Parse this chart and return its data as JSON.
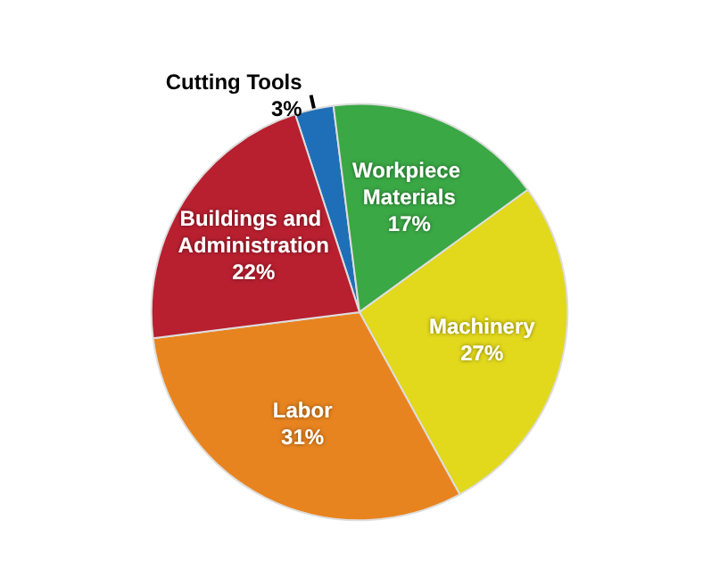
{
  "chart_data": {
    "type": "pie",
    "categories": [
      "Cutting Tools",
      "Workpiece Materials",
      "Machinery",
      "Labor",
      "Buildings and Administration"
    ],
    "values": [
      3,
      17,
      27,
      31,
      22
    ],
    "colors": [
      "#1f6fb8",
      "#3aa845",
      "#e2d81c",
      "#e8841f",
      "#b81f2f"
    ],
    "value_labels": [
      "3%",
      "17%",
      "27%",
      "31%",
      "22%"
    ]
  }
}
